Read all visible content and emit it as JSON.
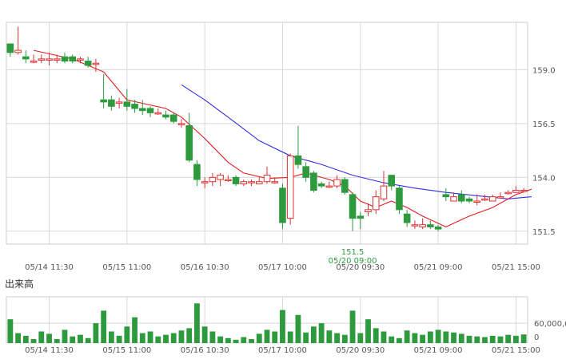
{
  "chart_data": [
    {
      "type": "candlestick",
      "title": "",
      "x_tick_labels": [
        "05/14 11:30",
        "05/15 11:00",
        "05/16 10:30",
        "05/17 10:00",
        "05/20 09:30",
        "05/21 09:00",
        "05/21 15:00"
      ],
      "y_tick_labels": [
        "159.0",
        "156.5",
        "154.0",
        "151.5"
      ],
      "ylim": [
        150.9,
        161.2
      ],
      "grid": true,
      "colors": {
        "up": "#e03030",
        "down": "#2e9a3e",
        "ma_short": "#e02020",
        "ma_long": "#3030e0",
        "grid": "#d8d8d8"
      },
      "min_annotation": {
        "value": "151.5",
        "time": "05/20 09:00",
        "candle_index": 44
      },
      "candles": [
        [
          160.2,
          159.8,
          159.8,
          159.6
        ],
        [
          159.8,
          159.9,
          161.0,
          159.7
        ],
        [
          159.6,
          159.5,
          159.9,
          159.3
        ],
        [
          159.4,
          159.4,
          159.7,
          159.3
        ],
        [
          159.5,
          159.5,
          159.7,
          159.3
        ],
        [
          159.5,
          159.5,
          159.8,
          159.2
        ],
        [
          159.5,
          159.5,
          159.7,
          159.3
        ],
        [
          159.6,
          159.4,
          159.8,
          159.3
        ],
        [
          159.6,
          159.4,
          159.7,
          159.3
        ],
        [
          159.5,
          159.5,
          159.6,
          159.3
        ],
        [
          159.4,
          159.2,
          159.6,
          159.1
        ],
        [
          159.3,
          159.3,
          159.5,
          158.9
        ],
        [
          157.6,
          157.5,
          158.8,
          157.2
        ],
        [
          157.6,
          157.3,
          157.8,
          157.1
        ],
        [
          157.5,
          157.5,
          157.7,
          157.2
        ],
        [
          157.5,
          157.3,
          158.1,
          157.1
        ],
        [
          157.4,
          157.2,
          157.6,
          157.0
        ],
        [
          157.2,
          157.1,
          157.6,
          156.9
        ],
        [
          157.2,
          157.0,
          157.3,
          156.8
        ],
        [
          157.0,
          157.0,
          157.2,
          156.9
        ],
        [
          156.9,
          156.8,
          157.1,
          156.7
        ],
        [
          156.9,
          156.6,
          157.0,
          156.5
        ],
        [
          156.5,
          156.5,
          156.7,
          156.3
        ],
        [
          156.4,
          154.8,
          157.0,
          154.7
        ],
        [
          154.6,
          153.9,
          154.8,
          153.6
        ],
        [
          153.8,
          153.8,
          154.0,
          153.5
        ],
        [
          153.8,
          154.0,
          154.2,
          153.6
        ],
        [
          153.9,
          154.1,
          154.2,
          153.6
        ],
        [
          153.9,
          153.9,
          154.1,
          153.8
        ],
        [
          154.0,
          153.7,
          154.1,
          153.6
        ],
        [
          153.7,
          153.8,
          153.9,
          153.6
        ],
        [
          153.8,
          153.8,
          153.9,
          153.6
        ],
        [
          153.7,
          153.8,
          154.0,
          153.7
        ],
        [
          153.8,
          154.1,
          154.5,
          153.7
        ],
        [
          153.8,
          153.8,
          154.0,
          153.7
        ],
        [
          153.5,
          151.9,
          153.7,
          151.6
        ],
        [
          152.1,
          155.0,
          155.1,
          151.8
        ],
        [
          155.0,
          154.6,
          156.4,
          154.4
        ],
        [
          154.5,
          154.0,
          154.7,
          153.8
        ],
        [
          154.2,
          153.4,
          154.3,
          153.3
        ],
        [
          153.7,
          153.6,
          153.8,
          153.5
        ],
        [
          153.6,
          153.6,
          153.8,
          153.5
        ],
        [
          153.6,
          153.9,
          154.1,
          153.5
        ],
        [
          153.9,
          153.3,
          154.0,
          153.2
        ],
        [
          153.2,
          152.1,
          153.3,
          151.5
        ],
        [
          152.2,
          152.1,
          152.4,
          151.6
        ],
        [
          152.4,
          152.5,
          152.8,
          152.2
        ],
        [
          152.5,
          153.1,
          153.4,
          152.3
        ],
        [
          153.0,
          153.6,
          154.3,
          152.9
        ],
        [
          154.1,
          153.6,
          154.1,
          153.4
        ],
        [
          153.5,
          152.5,
          153.6,
          152.3
        ],
        [
          152.3,
          151.9,
          152.5,
          151.7
        ],
        [
          151.8,
          151.8,
          152.0,
          151.6
        ],
        [
          151.7,
          151.8,
          152.1,
          151.6
        ],
        [
          151.8,
          151.7,
          152.0,
          151.6
        ],
        [
          151.7,
          151.6,
          151.8,
          151.5
        ],
        [
          153.2,
          153.1,
          153.5,
          152.9
        ],
        [
          152.9,
          153.1,
          153.3,
          152.9
        ],
        [
          153.2,
          152.9,
          153.4,
          152.8
        ],
        [
          153.0,
          152.9,
          153.1,
          152.8
        ],
        [
          152.9,
          152.9,
          153.2,
          152.7
        ],
        [
          153.0,
          153.0,
          153.2,
          152.9
        ],
        [
          152.9,
          153.1,
          153.2,
          152.9
        ],
        [
          153.1,
          153.1,
          153.3,
          153.0
        ],
        [
          153.3,
          153.3,
          153.4,
          153.2
        ],
        [
          153.3,
          153.4,
          153.6,
          153.3
        ],
        [
          153.4,
          153.4,
          153.5,
          153.3
        ]
      ],
      "ma_short": [
        [
          3,
          159.9
        ],
        [
          8,
          159.5
        ],
        [
          12,
          158.9
        ],
        [
          15,
          157.6
        ],
        [
          20,
          157.2
        ],
        [
          22,
          156.8
        ],
        [
          25,
          155.8
        ],
        [
          28,
          154.7
        ],
        [
          30,
          154.2
        ],
        [
          33,
          153.95
        ],
        [
          36,
          154.0
        ],
        [
          38,
          154.2
        ],
        [
          41,
          153.9
        ],
        [
          43,
          153.6
        ],
        [
          45,
          152.9
        ],
        [
          47,
          152.6
        ],
        [
          49,
          152.9
        ],
        [
          51,
          152.6
        ],
        [
          53,
          152.2
        ],
        [
          56,
          151.7
        ],
        [
          59,
          152.2
        ],
        [
          62,
          152.6
        ],
        [
          65,
          153.2
        ],
        [
          67,
          153.45
        ]
      ],
      "ma_long": [
        [
          22,
          158.3
        ],
        [
          25,
          157.6
        ],
        [
          28,
          156.8
        ],
        [
          32,
          155.7
        ],
        [
          36,
          155.0
        ],
        [
          40,
          154.6
        ],
        [
          44,
          154.1
        ],
        [
          48,
          153.75
        ],
        [
          52,
          153.5
        ],
        [
          56,
          153.3
        ],
        [
          60,
          153.15
        ],
        [
          64,
          153.0
        ],
        [
          67,
          153.1
        ]
      ]
    },
    {
      "type": "bar",
      "title": "出来高",
      "x_tick_labels": [
        "05/14 11:30",
        "05/15 11:00",
        "05/16 10:30",
        "05/17 10:00",
        "05/20 09:30",
        "05/21 09:00",
        "05/21 15:00"
      ],
      "y_tick_labels": [
        "60,000,0",
        "0"
      ],
      "ylim": [
        0,
        140000000
      ],
      "values": [
        72000000,
        30000000,
        22000000,
        12000000,
        35000000,
        28000000,
        12000000,
        40000000,
        20000000,
        25000000,
        15000000,
        60000000,
        98000000,
        35000000,
        22000000,
        50000000,
        78000000,
        30000000,
        35000000,
        20000000,
        25000000,
        30000000,
        38000000,
        45000000,
        120000000,
        50000000,
        35000000,
        20000000,
        15000000,
        10000000,
        18000000,
        12000000,
        28000000,
        40000000,
        35000000,
        100000000,
        35000000,
        85000000,
        32000000,
        50000000,
        60000000,
        38000000,
        30000000,
        25000000,
        98000000,
        30000000,
        72000000,
        45000000,
        35000000,
        20000000,
        15000000,
        38000000,
        30000000,
        25000000,
        35000000,
        40000000,
        35000000,
        32000000,
        28000000,
        22000000,
        20000000,
        18000000,
        22000000,
        20000000,
        25000000,
        22000000,
        26000000
      ]
    }
  ]
}
